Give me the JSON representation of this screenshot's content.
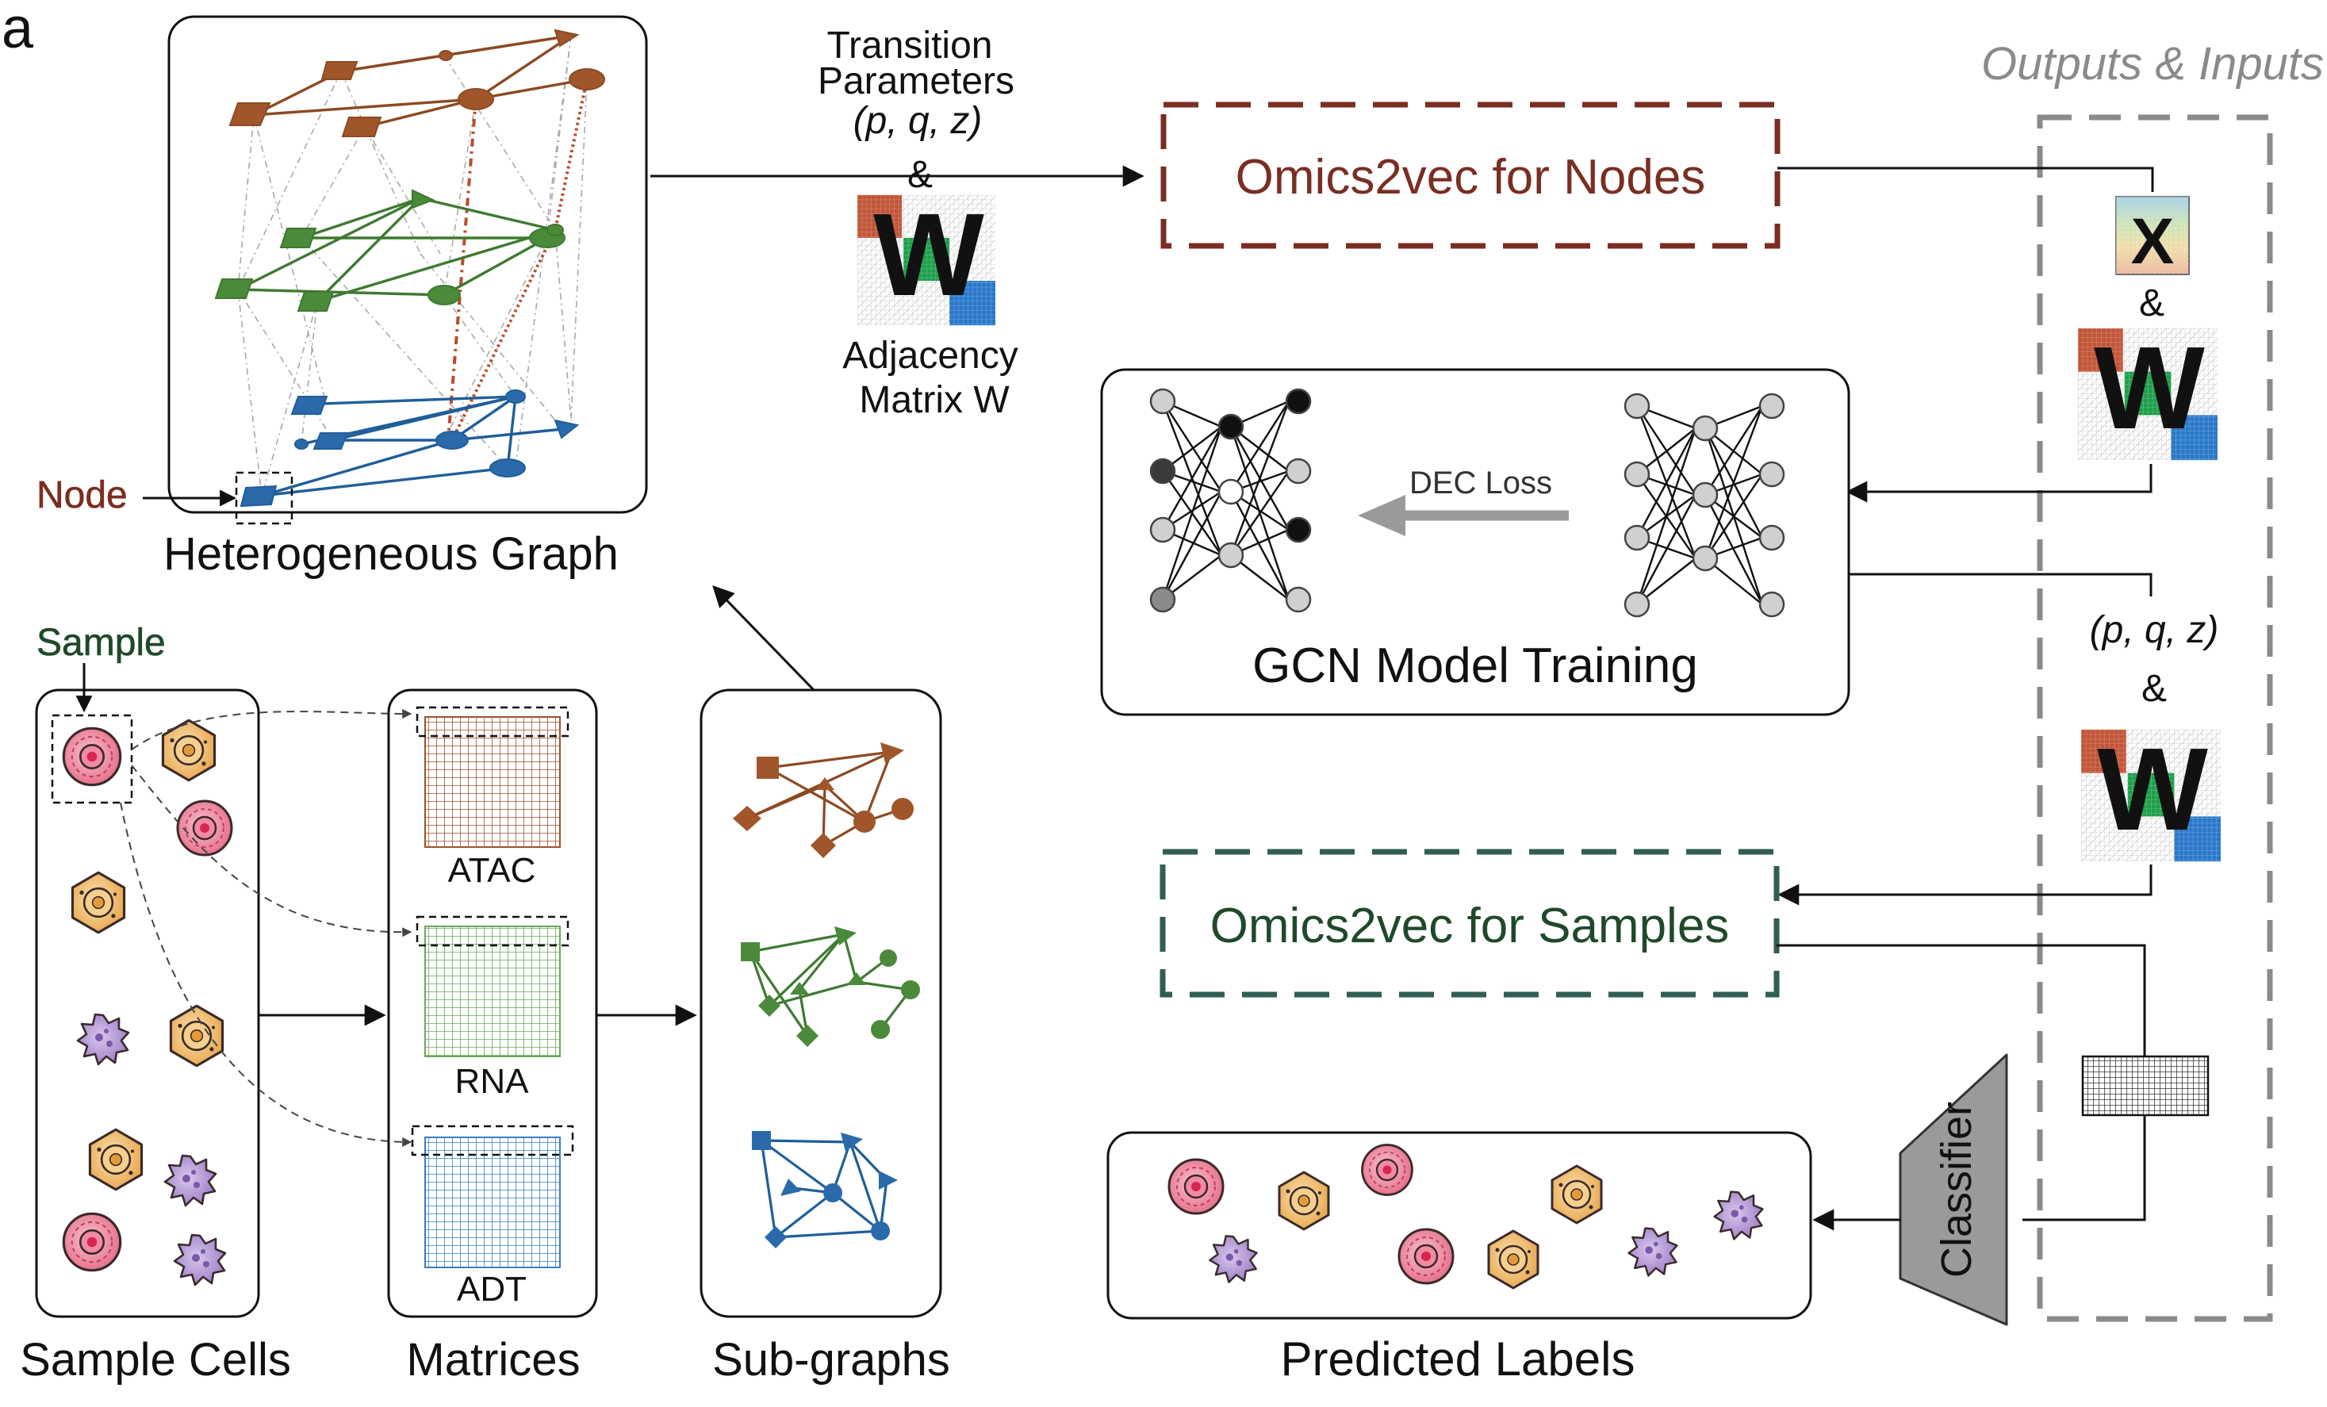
{
  "panel_letter": "a",
  "labels": {
    "transition_line1": "Transition",
    "transition_line2": "Parameters",
    "transition_line3": "(p, q, z)",
    "ampersand": "&",
    "adjacency_line1": "Adjacency",
    "adjacency_line2": "Matrix W",
    "w_glyph": "W",
    "x_glyph": "X",
    "node_label": "Node",
    "heterogeneous_graph": "Heterogeneous Graph",
    "sample_label": "Sample",
    "sample_cells": "Sample Cells",
    "matrices": "Matrices",
    "subgraphs": "Sub-graphs",
    "atac": "ATAC",
    "rna": "RNA",
    "adt": "ADT",
    "omics_nodes": "Omics2vec for Nodes",
    "omics_samples": "Omics2vec for Samples",
    "outputs_inputs": "Outputs & Inputs",
    "dec_loss": "DEC Loss",
    "gcn_training": "GCN Model Training",
    "pqz_right": "(p, q, z)",
    "classifier": "Classifier",
    "predicted_labels": "Predicted Labels"
  },
  "colors": {
    "atac": "#a0522d",
    "rna": "#4a8a3a",
    "adt": "#2a6aaa",
    "nodes_box": "#7a2e22",
    "samples_box": "#2f5e55",
    "outputs_box": "#8a8a8a",
    "cell_pink": "#e56b86",
    "cell_orange": "#e8a64c",
    "cell_purple": "#9b7bc4"
  }
}
